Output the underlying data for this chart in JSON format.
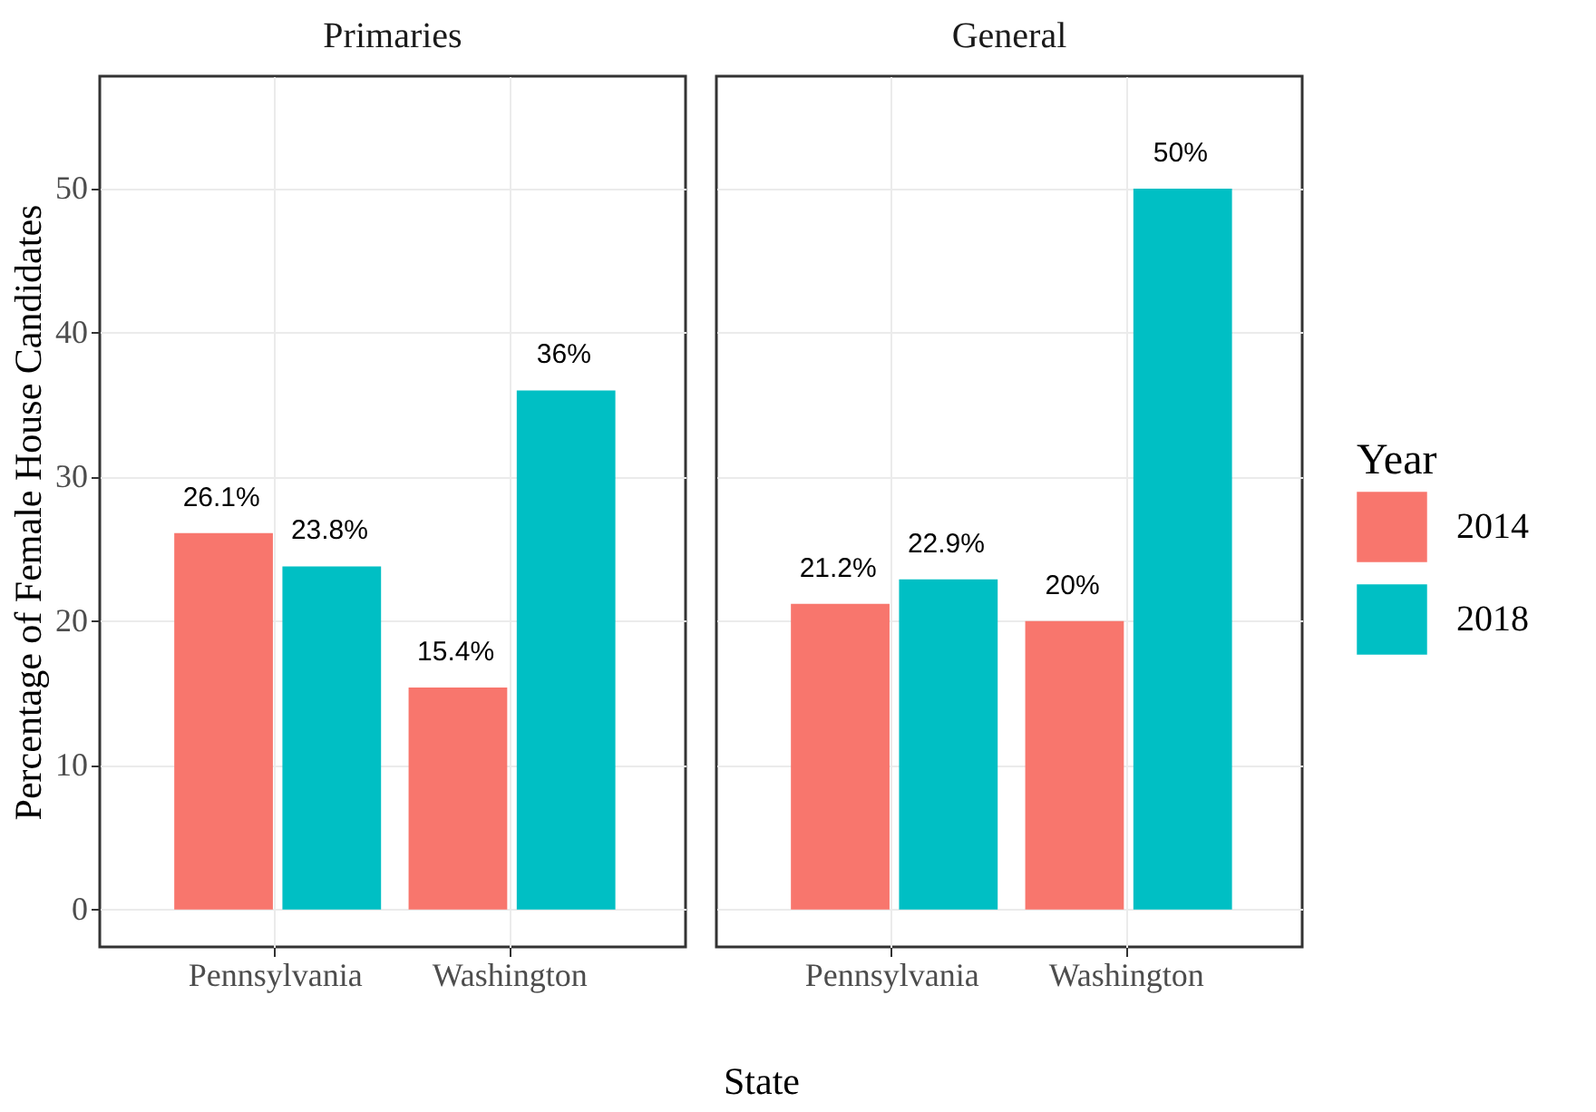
{
  "chart_data": [
    {
      "type": "bar",
      "title": "Primaries",
      "ylabel": "Percentage of Female House Candidates",
      "xlabel": "State",
      "categories": [
        "Pennsylvania",
        "Washington"
      ],
      "ylim": [
        -2.6,
        57.8
      ],
      "yticks": [
        0,
        10,
        20,
        30,
        40,
        50
      ],
      "grid": true,
      "legend": false,
      "series": [
        {
          "color": "#f8766d",
          "values": [
            26.1,
            15.4
          ],
          "value_labels": [
            "26.1%",
            "15.4%"
          ]
        },
        {
          "color": "#00bfc4",
          "values": [
            23.8,
            36
          ],
          "value_labels": [
            "23.8%",
            "36%"
          ]
        }
      ]
    },
    {
      "type": "bar",
      "title": "General",
      "categories": [
        "Pennsylvania",
        "Washington"
      ],
      "ylim": [
        -2.6,
        57.8
      ],
      "yticks": [
        0,
        10,
        20,
        30,
        40,
        50
      ],
      "grid": true,
      "legend": "right",
      "legend_title": "Year",
      "tick_labels": "x",
      "series": [
        {
          "name": "2014",
          "color": "#f8766d",
          "values": [
            21.2,
            20
          ],
          "value_labels": [
            "21.2%",
            "20%"
          ]
        },
        {
          "name": "2018",
          "color": "#00bfc4",
          "values": [
            22.9,
            50
          ],
          "value_labels": [
            "22.9%",
            "50%"
          ]
        }
      ]
    }
  ]
}
